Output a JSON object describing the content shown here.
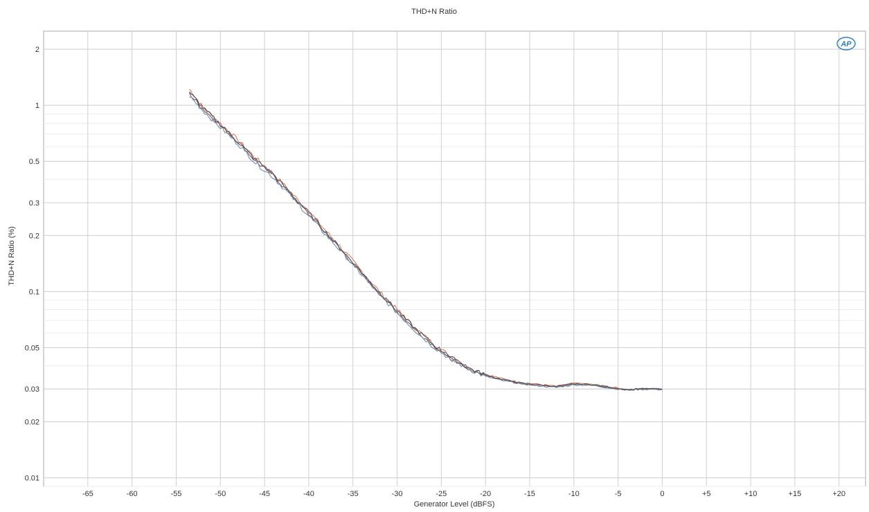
{
  "chart_data": {
    "type": "line",
    "title": "THD+N Ratio",
    "xlabel": "Generator Level (dBFS)",
    "ylabel": "THD+N Ratio (%)",
    "y_scale": "log",
    "xlim": [
      -70,
      23
    ],
    "ylim": [
      0.009,
      2.5
    ],
    "x_ticks": [
      -65,
      -60,
      -55,
      -50,
      -45,
      -40,
      -35,
      -30,
      -25,
      -20,
      -15,
      -10,
      -5,
      0,
      5,
      10,
      15,
      20
    ],
    "x_tick_labels": [
      "-65",
      "-60",
      "-55",
      "-50",
      "-45",
      "-40",
      "-35",
      "-30",
      "-25",
      "-20",
      "-15",
      "-10",
      "-5",
      "0",
      "+5",
      "+10",
      "+15",
      "+20"
    ],
    "y_ticks": [
      0.01,
      0.02,
      0.03,
      0.05,
      0.1,
      0.2,
      0.3,
      0.5,
      1,
      2
    ],
    "y_tick_labels": [
      "0.01",
      "0.02",
      "0.03",
      "0.05",
      "0.1",
      "0.2",
      "0.3",
      "0.5",
      "1",
      "2"
    ],
    "grid": true,
    "legend": "none",
    "logo": "AP",
    "series": [
      {
        "color": "#e07a58",
        "x": [
          -53.5,
          -52,
          -50,
          -48,
          -46,
          -44,
          -42,
          -40,
          -38,
          -36,
          -34,
          -32,
          -30,
          -28,
          -26,
          -24,
          -22,
          -20,
          -18,
          -16,
          -14,
          -12,
          -10,
          -8,
          -6,
          -4,
          -2,
          0
        ],
        "y": [
          1.22,
          0.98,
          0.8,
          0.65,
          0.52,
          0.43,
          0.34,
          0.27,
          0.21,
          0.165,
          0.128,
          0.1,
          0.08,
          0.064,
          0.053,
          0.045,
          0.039,
          0.036,
          0.034,
          0.0325,
          0.0318,
          0.031,
          0.0322,
          0.0318,
          0.0308,
          0.0298,
          0.0302,
          0.03
        ]
      },
      {
        "color": "#6e5a78",
        "x": [
          -53.5,
          -52,
          -50,
          -48,
          -46,
          -44,
          -42,
          -40,
          -38,
          -36,
          -34,
          -32,
          -30,
          -28,
          -26,
          -24,
          -22,
          -20,
          -18,
          -16,
          -14,
          -12,
          -10,
          -8,
          -6,
          -4,
          -2,
          0
        ],
        "y": [
          1.15,
          0.96,
          0.78,
          0.64,
          0.5,
          0.42,
          0.33,
          0.26,
          0.205,
          0.16,
          0.125,
          0.098,
          0.078,
          0.063,
          0.052,
          0.044,
          0.039,
          0.0355,
          0.0335,
          0.0322,
          0.0314,
          0.0308,
          0.0318,
          0.0316,
          0.0306,
          0.0297,
          0.03,
          0.0299
        ]
      },
      {
        "color": "#6f8da8",
        "x": [
          -53.5,
          -52,
          -50,
          -48,
          -46,
          -44,
          -42,
          -40,
          -38,
          -36,
          -34,
          -32,
          -30,
          -28,
          -26,
          -24,
          -22,
          -20,
          -18,
          -16,
          -14,
          -12,
          -10,
          -8,
          -6,
          -4,
          -2,
          0
        ],
        "y": [
          1.12,
          0.94,
          0.76,
          0.62,
          0.49,
          0.41,
          0.325,
          0.255,
          0.2,
          0.158,
          0.123,
          0.096,
          0.077,
          0.062,
          0.051,
          0.0435,
          0.0385,
          0.035,
          0.0332,
          0.032,
          0.0312,
          0.0306,
          0.0316,
          0.0314,
          0.0304,
          0.0296,
          0.0299,
          0.0298
        ]
      },
      {
        "color": "#4f4f4f",
        "x": [
          -53.5,
          -52,
          -50,
          -48,
          -46,
          -44,
          -42,
          -40,
          -38,
          -36,
          -34,
          -32,
          -30,
          -28,
          -26,
          -24,
          -22,
          -20,
          -18,
          -16,
          -14,
          -12,
          -10,
          -8,
          -6,
          -4,
          -2,
          0
        ],
        "y": [
          1.18,
          0.97,
          0.79,
          0.635,
          0.51,
          0.425,
          0.335,
          0.265,
          0.207,
          0.162,
          0.126,
          0.099,
          0.079,
          0.0635,
          0.0525,
          0.0445,
          0.039,
          0.0357,
          0.0337,
          0.0323,
          0.0316,
          0.0309,
          0.032,
          0.0317,
          0.0307,
          0.0297,
          0.0301,
          0.0299
        ]
      }
    ]
  }
}
